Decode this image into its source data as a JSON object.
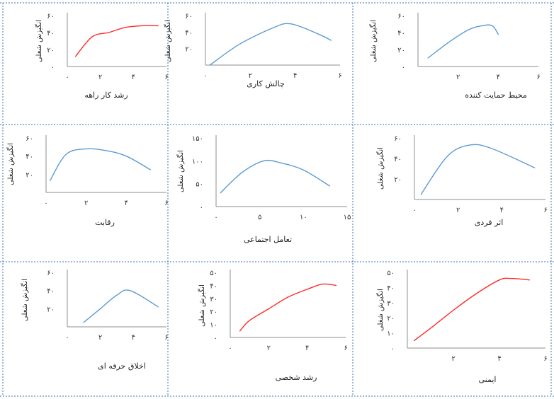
{
  "colors": {
    "blue": "#5b9bd5",
    "red": "#ff2a2a",
    "grid": "#3f6fb5"
  },
  "chart_data": [
    {
      "type": "line",
      "xlabel": "محیط حمایت کننده",
      "ylabel": "انگیزش شغلی",
      "color": "#5b9bd5",
      "xlim": [
        0,
        6
      ],
      "ylim": [
        0,
        60
      ],
      "xticks": [
        "۲",
        "۴",
        "۶"
      ],
      "yticks": [
        "۰",
        "۲۰",
        "۴۰",
        "۶۰"
      ],
      "points": [
        [
          0.5,
          10
        ],
        [
          1.5,
          28
        ],
        [
          2.5,
          43
        ],
        [
          3.2,
          48
        ],
        [
          3.7,
          48
        ],
        [
          4,
          38
        ]
      ]
    },
    {
      "type": "line",
      "xlabel": "چالش کاری",
      "ylabel": "انگیزش شغلی",
      "color": "#5b9bd5",
      "xlim": [
        0,
        6
      ],
      "ylim": [
        0,
        60
      ],
      "xticks": [
        "۰",
        "۲",
        "۴",
        "۶"
      ],
      "yticks": [
        "۲۰",
        "۴۰",
        "۶۰"
      ],
      "points": [
        [
          0.2,
          0
        ],
        [
          1.5,
          25
        ],
        [
          3,
          45
        ],
        [
          3.8,
          50
        ],
        [
          5,
          38
        ],
        [
          5.6,
          30
        ]
      ]
    },
    {
      "type": "line",
      "xlabel": "رشد کار راهه",
      "ylabel": "انگیزش شغلی",
      "color": "#ff2a2a",
      "xlim": [
        0,
        6
      ],
      "ylim": [
        0,
        60
      ],
      "xticks": [
        "۰",
        "۲",
        "۴",
        "۶"
      ],
      "yticks": [
        "۰",
        "۲۰",
        "۴۰",
        "۶۰"
      ],
      "points": [
        [
          0.5,
          12
        ],
        [
          1.5,
          35
        ],
        [
          2.5,
          40
        ],
        [
          3.5,
          46
        ],
        [
          4.5,
          48
        ],
        [
          5.5,
          48
        ]
      ]
    },
    {
      "type": "line",
      "xlabel": "اثر فردی",
      "ylabel": "انگیزش شغلی",
      "color": "#5b9bd5",
      "xlim": [
        0,
        6
      ],
      "ylim": [
        0,
        60
      ],
      "xticks": [
        "۰",
        "۲",
        "۴",
        "۶"
      ],
      "yticks": [
        "۲۰",
        "۴۰",
        "۶۰"
      ],
      "points": [
        [
          0.3,
          5
        ],
        [
          1.5,
          42
        ],
        [
          2.5,
          53
        ],
        [
          3.5,
          50
        ],
        [
          5.5,
          31
        ]
      ]
    },
    {
      "type": "line",
      "xlabel": "تعامل اجتماعی",
      "ylabel": "انگیزش شغلی",
      "color": "#5b9bd5",
      "xlim": [
        0,
        15
      ],
      "ylim": [
        0,
        150
      ],
      "xticks": [
        "۰",
        "۵",
        "۱۰",
        "۱۵"
      ],
      "yticks": [
        "۰",
        "۵۰",
        "۱۰۰",
        "۱۵۰"
      ],
      "points": [
        [
          0.5,
          30
        ],
        [
          3,
          75
        ],
        [
          5.5,
          100
        ],
        [
          7.5,
          95
        ],
        [
          10,
          80
        ],
        [
          13,
          45
        ]
      ]
    },
    {
      "type": "line",
      "xlabel": "رقابت",
      "ylabel": "انگیزش شغلی",
      "color": "#5b9bd5",
      "xlim": [
        0,
        6
      ],
      "ylim": [
        0,
        60
      ],
      "xticks": [
        "۰",
        "۲",
        "۴",
        "۶"
      ],
      "yticks": [
        "۲۰",
        "۴۰",
        "۶۰"
      ],
      "points": [
        [
          0.2,
          13
        ],
        [
          1,
          42
        ],
        [
          2,
          48
        ],
        [
          3,
          46
        ],
        [
          4,
          40
        ],
        [
          5.2,
          25
        ]
      ]
    },
    {
      "type": "line",
      "xlabel": "ایمنی",
      "ylabel": "انگیزش شغلی",
      "color": "#ff2a2a",
      "xlim": [
        0,
        6
      ],
      "ylim": [
        0,
        50
      ],
      "xticks": [
        "۲",
        "۴",
        "۶"
      ],
      "yticks": [
        "۰",
        "۱۰",
        "۲۰",
        "۳۰",
        "۴۰",
        "۵۰"
      ],
      "points": [
        [
          0.3,
          5
        ],
        [
          1,
          13
        ],
        [
          2,
          25
        ],
        [
          3,
          36
        ],
        [
          4,
          45
        ],
        [
          4.5,
          46
        ],
        [
          5.3,
          45
        ]
      ]
    },
    {
      "type": "line",
      "xlabel": "رشد شخصی",
      "ylabel": "انگیزش شغلی",
      "color": "#ff2a2a",
      "xlim": [
        0,
        6
      ],
      "ylim": [
        0,
        50
      ],
      "xticks": [
        "۰",
        "۲",
        "۴",
        "۶"
      ],
      "yticks": [
        "۰",
        "۱۰",
        "۲۰",
        "۳۰",
        "۴۰",
        "۵۰"
      ],
      "points": [
        [
          0.5,
          5
        ],
        [
          1,
          13
        ],
        [
          2,
          22
        ],
        [
          3,
          31
        ],
        [
          4,
          37
        ],
        [
          4.8,
          41
        ],
        [
          5.5,
          40
        ]
      ]
    },
    {
      "type": "line",
      "xlabel": "اخلاق حرفه ای",
      "ylabel": "انگیزش شغلی",
      "color": "#5b9bd5",
      "xlim": [
        0,
        6
      ],
      "ylim": [
        0,
        60
      ],
      "xticks": [
        "۰",
        "۲",
        "۴",
        "۶"
      ],
      "yticks": [
        "۲۰",
        "۴۰",
        "۶۰"
      ],
      "points": [
        [
          1,
          5
        ],
        [
          2,
          20
        ],
        [
          3,
          35
        ],
        [
          3.8,
          40
        ],
        [
          5.5,
          22
        ]
      ]
    }
  ]
}
